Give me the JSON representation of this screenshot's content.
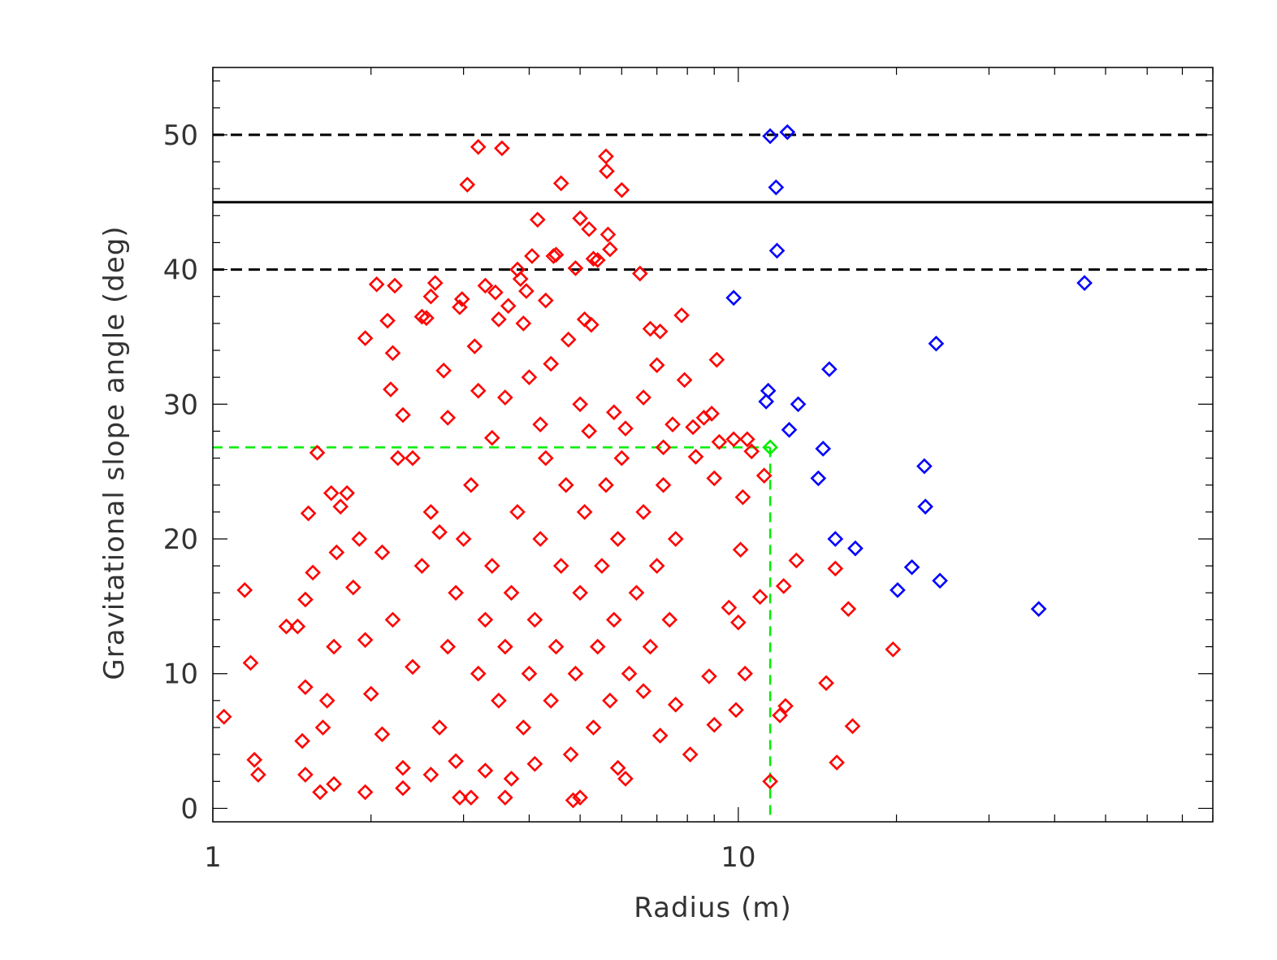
{
  "chart_data": {
    "type": "scatter",
    "title": "",
    "xlabel": "Radius (m)",
    "ylabel": "Gravitational slope angle (deg)",
    "x_scale": "log",
    "xlim": [
      1,
      80
    ],
    "ylim": [
      -1,
      55
    ],
    "x_ticks": [
      1,
      10
    ],
    "y_ticks": [
      0,
      10,
      20,
      30,
      40,
      50
    ],
    "grid": false,
    "legend": "none",
    "marker": "diamond-open",
    "reference_lines": [
      {
        "kind": "horizontal",
        "y": 45,
        "style": "solid",
        "color": "#000000"
      },
      {
        "kind": "horizontal",
        "y": 40,
        "style": "dashed",
        "color": "#000000"
      },
      {
        "kind": "horizontal",
        "y": 50,
        "style": "dashed",
        "color": "#000000"
      },
      {
        "kind": "crosshair",
        "x": 11.5,
        "y": 26.8,
        "style": "dashed",
        "color": "#00ee00"
      }
    ],
    "series": [
      {
        "color": "#ff0000",
        "points": [
          [
            1.05,
            6.8
          ],
          [
            1.15,
            16.2
          ],
          [
            1.18,
            10.8
          ],
          [
            1.2,
            3.6
          ],
          [
            1.22,
            2.5
          ],
          [
            1.38,
            13.5
          ],
          [
            1.45,
            13.5
          ],
          [
            1.5,
            15.5
          ],
          [
            1.52,
            21.9
          ],
          [
            1.58,
            26.4
          ],
          [
            1.55,
            17.5
          ],
          [
            1.5,
            9.0
          ],
          [
            1.48,
            5.0
          ],
          [
            1.5,
            2.5
          ],
          [
            1.6,
            1.2
          ],
          [
            1.62,
            6.0
          ],
          [
            1.7,
            12.0
          ],
          [
            1.65,
            8.0
          ],
          [
            1.68,
            23.4
          ],
          [
            1.75,
            22.4
          ],
          [
            1.8,
            23.4
          ],
          [
            1.72,
            19.0
          ],
          [
            1.7,
            1.8
          ],
          [
            1.85,
            16.4
          ],
          [
            1.9,
            20.0
          ],
          [
            1.95,
            34.9
          ],
          [
            1.95,
            1.2
          ],
          [
            2.05,
            38.9
          ],
          [
            2.15,
            36.2
          ],
          [
            2.22,
            38.8
          ],
          [
            2.2,
            33.8
          ],
          [
            2.18,
            31.1
          ],
          [
            2.3,
            29.2
          ],
          [
            2.25,
            26.0
          ],
          [
            2.1,
            19.0
          ],
          [
            2.3,
            1.5
          ],
          [
            2.5,
            36.5
          ],
          [
            2.55,
            36.4
          ],
          [
            2.6,
            38.0
          ],
          [
            2.65,
            39.0
          ],
          [
            2.75,
            32.5
          ],
          [
            2.95,
            37.2
          ],
          [
            2.98,
            37.8
          ],
          [
            3.05,
            46.3
          ],
          [
            3.15,
            34.3
          ],
          [
            3.2,
            49.1
          ],
          [
            3.3,
            38.8
          ],
          [
            3.45,
            38.3
          ],
          [
            3.5,
            36.3
          ],
          [
            3.55,
            49.0
          ],
          [
            3.65,
            37.3
          ],
          [
            3.8,
            40.0
          ],
          [
            3.85,
            39.3
          ],
          [
            3.9,
            36.0
          ],
          [
            3.95,
            38.4
          ],
          [
            4.05,
            41.0
          ],
          [
            4.15,
            43.7
          ],
          [
            4.3,
            37.7
          ],
          [
            4.45,
            41.0
          ],
          [
            4.5,
            41.1
          ],
          [
            4.6,
            46.4
          ],
          [
            4.75,
            34.8
          ],
          [
            4.9,
            40.1
          ],
          [
            5.0,
            43.8
          ],
          [
            5.1,
            36.3
          ],
          [
            5.2,
            43.0
          ],
          [
            5.25,
            35.9
          ],
          [
            5.3,
            40.8
          ],
          [
            5.4,
            40.7
          ],
          [
            5.6,
            48.4
          ],
          [
            5.62,
            47.3
          ],
          [
            5.65,
            42.6
          ],
          [
            5.7,
            41.5
          ],
          [
            5.8,
            29.4
          ],
          [
            6.0,
            45.9
          ],
          [
            6.1,
            28.2
          ],
          [
            6.5,
            39.7
          ],
          [
            6.6,
            30.5
          ],
          [
            6.8,
            35.6
          ],
          [
            7.0,
            32.9
          ],
          [
            7.1,
            35.4
          ],
          [
            7.2,
            26.8
          ],
          [
            7.5,
            28.5
          ],
          [
            7.8,
            36.6
          ],
          [
            7.9,
            31.8
          ],
          [
            8.2,
            28.3
          ],
          [
            8.3,
            26.1
          ],
          [
            8.6,
            29.0
          ],
          [
            8.9,
            29.3
          ],
          [
            9.1,
            33.3
          ],
          [
            9.2,
            27.2
          ],
          [
            9.8,
            27.4
          ],
          [
            10.2,
            23.1
          ],
          [
            10.4,
            27.4
          ],
          [
            10.6,
            26.5
          ],
          [
            11.2,
            24.7
          ],
          [
            9.0,
            24.5
          ],
          [
            9.6,
            14.9
          ],
          [
            10.0,
            13.8
          ],
          [
            10.1,
            19.2
          ],
          [
            10.3,
            10.0
          ],
          [
            9.9,
            7.3
          ],
          [
            9.0,
            6.2
          ],
          [
            8.8,
            9.8
          ],
          [
            8.1,
            4.0
          ],
          [
            7.6,
            7.7
          ],
          [
            7.1,
            5.4
          ],
          [
            6.6,
            8.7
          ],
          [
            6.1,
            2.2
          ],
          [
            5.9,
            3.0
          ],
          [
            5.0,
            0.8
          ],
          [
            4.85,
            0.6
          ],
          [
            3.6,
            0.8
          ],
          [
            3.1,
            0.8
          ],
          [
            2.95,
            0.8
          ],
          [
            11.0,
            15.7
          ],
          [
            11.5,
            2.0
          ],
          [
            12.0,
            6.9
          ],
          [
            12.3,
            7.6
          ],
          [
            12.2,
            16.5
          ],
          [
            12.9,
            18.4
          ],
          [
            14.7,
            9.3
          ],
          [
            15.3,
            17.8
          ],
          [
            15.4,
            3.4
          ],
          [
            16.2,
            14.8
          ],
          [
            16.5,
            6.1
          ],
          [
            19.7,
            11.8
          ],
          [
            1.95,
            12.5
          ],
          [
            2.0,
            8.5
          ],
          [
            2.1,
            5.5
          ],
          [
            2.2,
            14.0
          ],
          [
            2.4,
            10.5
          ],
          [
            2.5,
            18.0
          ],
          [
            2.6,
            22.0
          ],
          [
            2.7,
            6.0
          ],
          [
            2.8,
            12.0
          ],
          [
            2.9,
            16.0
          ],
          [
            3.0,
            20.0
          ],
          [
            3.1,
            24.0
          ],
          [
            3.2,
            10.0
          ],
          [
            3.3,
            14.0
          ],
          [
            3.4,
            18.0
          ],
          [
            3.5,
            8.0
          ],
          [
            3.6,
            12.0
          ],
          [
            3.7,
            16.0
          ],
          [
            3.8,
            22.0
          ],
          [
            3.9,
            6.0
          ],
          [
            4.0,
            10.0
          ],
          [
            4.1,
            14.0
          ],
          [
            4.2,
            20.0
          ],
          [
            4.3,
            26.0
          ],
          [
            4.4,
            8.0
          ],
          [
            4.5,
            12.0
          ],
          [
            4.6,
            18.0
          ],
          [
            4.7,
            24.0
          ],
          [
            4.8,
            4.0
          ],
          [
            4.9,
            10.0
          ],
          [
            5.0,
            16.0
          ],
          [
            5.1,
            22.0
          ],
          [
            5.2,
            28.0
          ],
          [
            5.3,
            6.0
          ],
          [
            5.4,
            12.0
          ],
          [
            5.5,
            18.0
          ],
          [
            5.6,
            24.0
          ],
          [
            5.7,
            8.0
          ],
          [
            5.8,
            14.0
          ],
          [
            5.9,
            20.0
          ],
          [
            6.0,
            26.0
          ],
          [
            6.2,
            10.0
          ],
          [
            6.4,
            16.0
          ],
          [
            6.6,
            22.0
          ],
          [
            6.8,
            12.0
          ],
          [
            7.0,
            18.0
          ],
          [
            7.2,
            24.0
          ],
          [
            7.4,
            14.0
          ],
          [
            7.6,
            20.0
          ],
          [
            2.3,
            3.0
          ],
          [
            2.6,
            2.5
          ],
          [
            2.9,
            3.5
          ],
          [
            3.3,
            2.8
          ],
          [
            3.7,
            2.2
          ],
          [
            4.1,
            3.3
          ],
          [
            2.4,
            26.0
          ],
          [
            2.8,
            29.0
          ],
          [
            3.2,
            31.0
          ],
          [
            3.6,
            30.5
          ],
          [
            4.0,
            32.0
          ],
          [
            4.4,
            33.0
          ],
          [
            2.7,
            20.5
          ],
          [
            3.4,
            27.5
          ],
          [
            4.2,
            28.5
          ],
          [
            5.0,
            30.0
          ]
        ]
      },
      {
        "color": "#0000ff",
        "points": [
          [
            9.8,
            37.9
          ],
          [
            11.3,
            30.2
          ],
          [
            11.4,
            31.0
          ],
          [
            11.5,
            49.9
          ],
          [
            11.8,
            46.1
          ],
          [
            11.85,
            41.4
          ],
          [
            12.4,
            50.2
          ],
          [
            12.5,
            28.1
          ],
          [
            13.0,
            30.0
          ],
          [
            14.2,
            24.5
          ],
          [
            14.5,
            26.7
          ],
          [
            14.9,
            32.6
          ],
          [
            15.3,
            20.0
          ],
          [
            16.7,
            19.3
          ],
          [
            20.1,
            16.2
          ],
          [
            21.4,
            17.9
          ],
          [
            22.6,
            25.4
          ],
          [
            22.7,
            22.4
          ],
          [
            23.8,
            34.5
          ],
          [
            24.2,
            16.9
          ],
          [
            37.3,
            14.8
          ],
          [
            45.6,
            39.0
          ]
        ]
      },
      {
        "color": "#00ee00",
        "points": [
          [
            11.5,
            26.8
          ]
        ]
      }
    ]
  }
}
